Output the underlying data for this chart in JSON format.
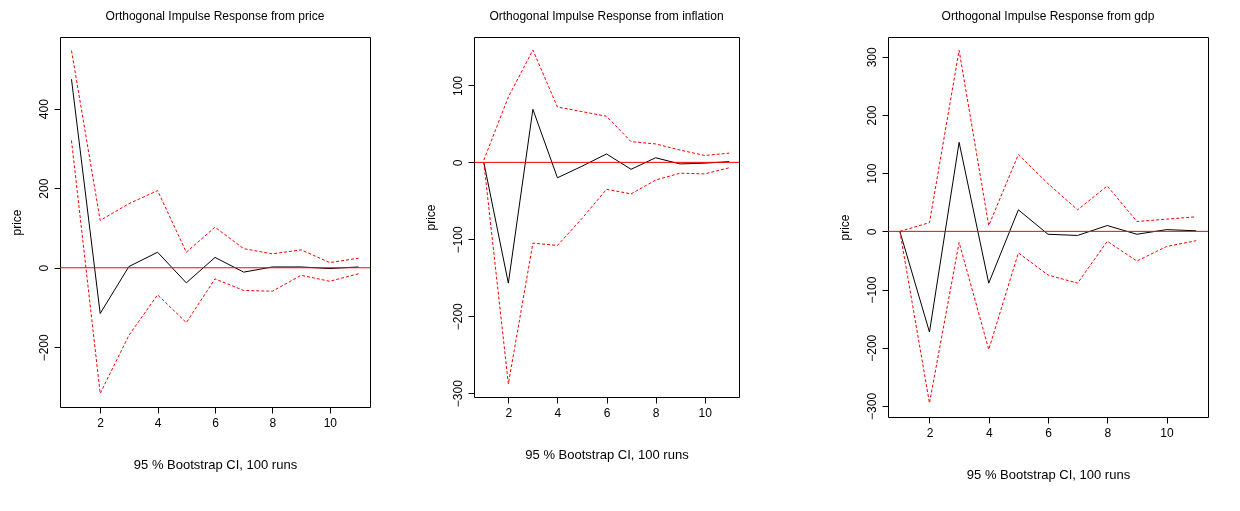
{
  "chart_data": [
    {
      "type": "line",
      "title": "Orthogonal Impulse Response from price",
      "xlabel": "95 % Bootstrap CI,  100 runs",
      "ylabel": "price",
      "x": [
        1,
        2,
        3,
        4,
        5,
        6,
        7,
        8,
        9,
        10,
        11
      ],
      "xlim": [
        0.6,
        11.4
      ],
      "xticks": [
        2,
        4,
        6,
        8,
        10
      ],
      "ylim": [
        -350,
        580
      ],
      "yticks": [
        -200,
        0,
        200,
        400
      ],
      "grid": false,
      "marker": "none",
      "series": [
        {
          "color": "#000000",
          "line_style": "solid",
          "values": [
            474,
            -115,
            3,
            39,
            -38,
            26,
            -11,
            2,
            2,
            -2,
            2
          ]
        },
        {
          "color": "#ff0000",
          "line_style": "dashed",
          "values": [
            546,
            119,
            161,
            194,
            39,
            102,
            48,
            35,
            45,
            13,
            24
          ]
        },
        {
          "color": "#ff0000",
          "line_style": "dashed",
          "values": [
            320,
            -316,
            -170,
            -68,
            -138,
            -28,
            -57,
            -59,
            -19,
            -34,
            -15
          ]
        }
      ],
      "ref_lines": [
        {
          "axis": "y",
          "value": 0,
          "color": "#ff0000"
        }
      ]
    },
    {
      "type": "line",
      "title": "Orthogonal Impulse Response from inflation",
      "xlabel": "95 % Bootstrap CI,  100 runs",
      "ylabel": "price",
      "x": [
        1,
        2,
        3,
        4,
        5,
        6,
        7,
        8,
        9,
        10,
        11
      ],
      "xlim": [
        0.6,
        11.4
      ],
      "xticks": [
        2,
        4,
        6,
        8,
        10
      ],
      "ylim": [
        -305,
        163
      ],
      "yticks": [
        -300,
        -200,
        -100,
        0,
        100
      ],
      "grid": false,
      "marker": "none",
      "series": [
        {
          "color": "#000000",
          "line_style": "solid",
          "values": [
            0,
            -157,
            69,
            -20,
            -5,
            11,
            -9,
            6,
            -2,
            -1,
            1
          ]
        },
        {
          "color": "#ff0000",
          "line_style": "dashed",
          "values": [
            3,
            85,
            146,
            72,
            66,
            60,
            27,
            24,
            16,
            9,
            12
          ]
        },
        {
          "color": "#ff0000",
          "line_style": "dashed",
          "values": [
            0,
            -288,
            -105,
            -108,
            -73,
            -35,
            -41,
            -23,
            -14,
            -15,
            -7
          ]
        }
      ],
      "ref_lines": [
        {
          "axis": "y",
          "value": 0,
          "color": "#ff0000"
        }
      ]
    },
    {
      "type": "line",
      "title": "Orthogonal Impulse Response from gdp",
      "xlabel": "95 % Bootstrap CI,  100 runs",
      "ylabel": "price",
      "x": [
        1,
        2,
        3,
        4,
        5,
        6,
        7,
        8,
        9,
        10,
        11
      ],
      "xlim": [
        0.6,
        11.4
      ],
      "xticks": [
        2,
        4,
        6,
        8,
        10
      ],
      "ylim": [
        -319,
        334
      ],
      "yticks": [
        -300,
        -200,
        -100,
        0,
        100,
        200,
        300
      ],
      "grid": false,
      "marker": "none",
      "series": [
        {
          "color": "#000000",
          "line_style": "solid",
          "values": [
            0,
            -173,
            153,
            -89,
            37,
            -5,
            -7,
            10,
            -5,
            3,
            1
          ]
        },
        {
          "color": "#ff0000",
          "line_style": "dashed",
          "values": [
            0,
            15,
            311,
            10,
            132,
            82,
            37,
            78,
            17,
            21,
            25
          ]
        },
        {
          "color": "#ff0000",
          "line_style": "dashed",
          "values": [
            0,
            -295,
            -19,
            -203,
            -37,
            -75,
            -89,
            -17,
            -51,
            -26,
            -16
          ]
        }
      ],
      "ref_lines": [
        {
          "axis": "y",
          "value": 0,
          "color": "#ff0000"
        }
      ]
    }
  ]
}
